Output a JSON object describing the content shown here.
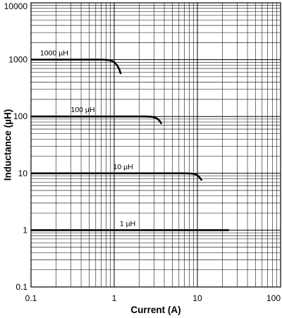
{
  "chart_data": {
    "type": "line",
    "title": "",
    "xlabel": "Current (A)",
    "ylabel": "Inductance (µH)",
    "x_scale": "log",
    "y_scale": "log",
    "xlim": [
      0.1,
      100
    ],
    "ylim": [
      0.1,
      10000
    ],
    "grid": true,
    "x_ticks": [
      {
        "value": 0.1,
        "label": "0.1"
      },
      {
        "value": 1,
        "label": "1"
      },
      {
        "value": 10,
        "label": "10"
      },
      {
        "value": 100,
        "label": "100"
      }
    ],
    "y_ticks": [
      {
        "value": 0.1,
        "label": "0.1"
      },
      {
        "value": 1,
        "label": "1"
      },
      {
        "value": 10,
        "label": "10"
      },
      {
        "value": 100,
        "label": "100"
      },
      {
        "value": 1000,
        "label": "1000"
      },
      {
        "value": 10000,
        "label": "10000"
      }
    ],
    "colors": {
      "line": "#000000",
      "grid": "#000000",
      "background": "#ffffff"
    },
    "series": [
      {
        "name": "1000 µH",
        "points": [
          [
            0.1,
            1000
          ],
          [
            0.4,
            1000
          ],
          [
            0.7,
            1000
          ],
          [
            0.82,
            990
          ],
          [
            0.92,
            960
          ],
          [
            1.0,
            900
          ],
          [
            1.08,
            800
          ],
          [
            1.15,
            680
          ],
          [
            1.2,
            560
          ]
        ]
      },
      {
        "name": "100 µH",
        "points": [
          [
            0.1,
            100
          ],
          [
            1.0,
            100
          ],
          [
            2.3,
            100
          ],
          [
            2.8,
            99
          ],
          [
            3.1,
            96
          ],
          [
            3.35,
            90
          ],
          [
            3.55,
            82
          ],
          [
            3.7,
            74
          ]
        ]
      },
      {
        "name": "10 µH",
        "points": [
          [
            0.1,
            10
          ],
          [
            3.0,
            10
          ],
          [
            7.3,
            10
          ],
          [
            8.5,
            9.9
          ],
          [
            9.5,
            9.6
          ],
          [
            10.2,
            9.0
          ],
          [
            10.8,
            8.2
          ],
          [
            11.3,
            7.5
          ]
        ]
      },
      {
        "name": "1 µH",
        "points": [
          [
            0.1,
            1
          ],
          [
            5.0,
            1
          ],
          [
            24.0,
            1
          ]
        ]
      }
    ]
  }
}
